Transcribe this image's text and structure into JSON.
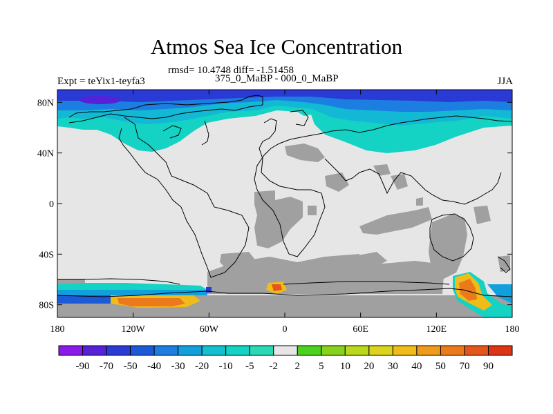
{
  "chart_data": {
    "type": "heatmap",
    "title": "Atmos Sea Ice Concentration",
    "subtitle_stats": "rmsd= 10.4748 diff= -1.51458",
    "subtitle_period": "375_0_MaBP - 000_0_MaBP",
    "left_label": "Expt = teYix1-teyfa3",
    "right_label": "JJA",
    "x_axis": {
      "range": [
        -180,
        180
      ],
      "ticks": [
        -180,
        -120,
        -60,
        0,
        60,
        120,
        180
      ],
      "tick_labels": [
        "180",
        "120W",
        "60W",
        "0",
        "60E",
        "120E",
        "180"
      ]
    },
    "y_axis": {
      "range": [
        -90,
        90
      ],
      "ticks": [
        80,
        40,
        0,
        -40,
        -80
      ],
      "tick_labels": [
        "80N",
        "40N",
        "0",
        "40S",
        "80S"
      ]
    },
    "colorbar": {
      "labels": [
        "-90",
        "-70",
        "-50",
        "-40",
        "-30",
        "-20",
        "-10",
        "-5",
        "-2",
        "2",
        "5",
        "10",
        "20",
        "30",
        "40",
        "50",
        "70",
        "90"
      ],
      "colors": [
        "#8a1ae8",
        "#5522d8",
        "#2a3ad4",
        "#1d5ad8",
        "#1b7ee0",
        "#12a0dc",
        "#12c0d0",
        "#14d2c4",
        "#2ad8b4",
        "#e6e6e6",
        "#4cd21e",
        "#86d21c",
        "#bcd81c",
        "#dcd41c",
        "#f0bc1a",
        "#f09a1c",
        "#ea7a1c",
        "#e4561c",
        "#dc3414"
      ]
    },
    "colors": {
      "background_no_change": "#e6e6e6",
      "masked_land": "#a0a0a0",
      "coastline": "#000000"
    },
    "regions": [
      {
        "name": "arctic-deep-decrease",
        "value": -55
      },
      {
        "name": "arctic-decrease-band",
        "value": -30
      },
      {
        "name": "arctic-moderate-decrease",
        "value": -15
      },
      {
        "name": "north-pacific-decrease",
        "value": -10
      },
      {
        "name": "north-atlantic-decrease",
        "value": -10
      },
      {
        "name": "southern-ocean-decrease",
        "value": -30
      },
      {
        "name": "southern-pacific-increase",
        "value": 40
      },
      {
        "name": "southern-pacific-core-increase",
        "value": 60
      },
      {
        "name": "australia-south-increase",
        "value": 50
      },
      {
        "name": "atlantic-south-increase",
        "value": 40
      }
    ]
  }
}
